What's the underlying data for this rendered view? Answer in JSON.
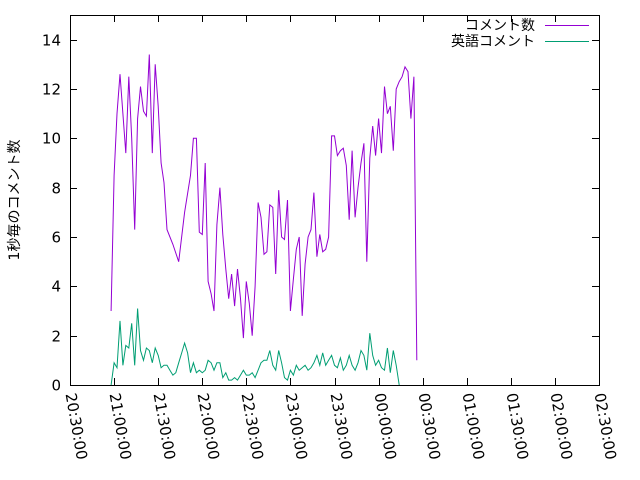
{
  "chart_data": {
    "type": "line",
    "title": "",
    "xlabel": "",
    "ylabel": "1秒毎のコメント数",
    "ylim": [
      0,
      15
    ],
    "yticks": [
      0,
      2,
      4,
      6,
      8,
      10,
      12,
      14
    ],
    "xlim": [
      "20:30:00",
      "02:30:00"
    ],
    "xticks": [
      "20:30:00",
      "21:00:00",
      "21:30:00",
      "22:00:00",
      "22:30:00",
      "23:00:00",
      "23:30:00",
      "00:00:00",
      "00:30:00",
      "01:00:00",
      "01:30:00",
      "02:00:00",
      "02:30:00"
    ],
    "grid": false,
    "legend_position": "top-right",
    "series": [
      {
        "name": "コメント数",
        "color": "#9400d3",
        "points": [
          [
            "20:58:00",
            3.0
          ],
          [
            "21:00:00",
            8.5
          ],
          [
            "21:02:00",
            11.0
          ],
          [
            "21:04:00",
            12.6
          ],
          [
            "21:06:00",
            11.0
          ],
          [
            "21:08:00",
            9.4
          ],
          [
            "21:10:00",
            12.5
          ],
          [
            "21:12:00",
            10.0
          ],
          [
            "21:14:00",
            6.3
          ],
          [
            "21:16:00",
            10.8
          ],
          [
            "21:18:00",
            12.1
          ],
          [
            "21:20:00",
            11.1
          ],
          [
            "21:22:00",
            10.9
          ],
          [
            "21:24:00",
            13.4
          ],
          [
            "21:26:00",
            9.4
          ],
          [
            "21:28:00",
            13.0
          ],
          [
            "21:30:00",
            11.3
          ],
          [
            "21:32:00",
            9.0
          ],
          [
            "21:34:00",
            8.2
          ],
          [
            "21:36:00",
            6.3
          ],
          [
            "21:40:00",
            5.7
          ],
          [
            "21:44:00",
            5.0
          ],
          [
            "21:48:00",
            7.0
          ],
          [
            "21:52:00",
            8.5
          ],
          [
            "21:54:00",
            10.0
          ],
          [
            "21:56:00",
            10.0
          ],
          [
            "21:58:00",
            6.2
          ],
          [
            "22:00:00",
            6.1
          ],
          [
            "22:02:00",
            9.0
          ],
          [
            "22:04:00",
            4.2
          ],
          [
            "22:06:00",
            3.7
          ],
          [
            "22:08:00",
            3.0
          ],
          [
            "22:10:00",
            6.5
          ],
          [
            "22:12:00",
            8.0
          ],
          [
            "22:14:00",
            6.1
          ],
          [
            "22:16:00",
            4.7
          ],
          [
            "22:18:00",
            3.5
          ],
          [
            "22:20:00",
            4.5
          ],
          [
            "22:22:00",
            3.2
          ],
          [
            "22:24:00",
            4.7
          ],
          [
            "22:26:00",
            3.5
          ],
          [
            "22:28:00",
            1.9
          ],
          [
            "22:30:00",
            4.2
          ],
          [
            "22:32:00",
            3.3
          ],
          [
            "22:34:00",
            2.0
          ],
          [
            "22:36:00",
            4.0
          ],
          [
            "22:38:00",
            7.4
          ],
          [
            "22:40:00",
            6.8
          ],
          [
            "22:42:00",
            5.3
          ],
          [
            "22:44:00",
            5.4
          ],
          [
            "22:46:00",
            7.3
          ],
          [
            "22:48:00",
            7.2
          ],
          [
            "22:50:00",
            4.5
          ],
          [
            "22:52:00",
            7.9
          ],
          [
            "22:54:00",
            6.0
          ],
          [
            "22:56:00",
            5.9
          ],
          [
            "22:58:00",
            7.5
          ],
          [
            "23:00:00",
            3.0
          ],
          [
            "23:02:00",
            4.3
          ],
          [
            "23:04:00",
            5.5
          ],
          [
            "23:06:00",
            6.0
          ],
          [
            "23:08:00",
            2.8
          ],
          [
            "23:10:00",
            4.9
          ],
          [
            "23:12:00",
            6.0
          ],
          [
            "23:14:00",
            6.3
          ],
          [
            "23:16:00",
            7.8
          ],
          [
            "23:18:00",
            5.2
          ],
          [
            "23:20:00",
            6.1
          ],
          [
            "23:22:00",
            5.4
          ],
          [
            "23:24:00",
            5.5
          ],
          [
            "23:26:00",
            6.0
          ],
          [
            "23:28:00",
            10.1
          ],
          [
            "23:30:00",
            10.1
          ],
          [
            "23:32:00",
            9.3
          ],
          [
            "23:34:00",
            9.5
          ],
          [
            "23:36:00",
            9.6
          ],
          [
            "23:38:00",
            8.9
          ],
          [
            "23:40:00",
            6.7
          ],
          [
            "23:42:00",
            9.5
          ],
          [
            "23:44:00",
            6.8
          ],
          [
            "23:46:00",
            8.0
          ],
          [
            "23:48:00",
            9.0
          ],
          [
            "23:50:00",
            9.8
          ],
          [
            "23:52:00",
            5.0
          ],
          [
            "23:54:00",
            9.2
          ],
          [
            "23:56:00",
            10.5
          ],
          [
            "23:58:00",
            9.3
          ],
          [
            "00:00:00",
            10.8
          ],
          [
            "00:02:00",
            9.4
          ],
          [
            "00:04:00",
            12.1
          ],
          [
            "00:06:00",
            11.0
          ],
          [
            "00:08:00",
            11.3
          ],
          [
            "00:10:00",
            9.5
          ],
          [
            "00:12:00",
            12.0
          ],
          [
            "00:14:00",
            12.3
          ],
          [
            "00:16:00",
            12.5
          ],
          [
            "00:18:00",
            12.9
          ],
          [
            "00:20:00",
            12.7
          ],
          [
            "00:22:00",
            10.8
          ],
          [
            "00:24:00",
            12.5
          ],
          [
            "00:26:00",
            1.0
          ]
        ]
      },
      {
        "name": "英語コメント",
        "color": "#009e73",
        "points": [
          [
            "20:58:00",
            0.0
          ],
          [
            "21:00:00",
            0.9
          ],
          [
            "21:02:00",
            0.7
          ],
          [
            "21:04:00",
            2.6
          ],
          [
            "21:06:00",
            0.8
          ],
          [
            "21:08:00",
            1.6
          ],
          [
            "21:10:00",
            1.5
          ],
          [
            "21:12:00",
            2.5
          ],
          [
            "21:14:00",
            0.8
          ],
          [
            "21:16:00",
            3.1
          ],
          [
            "21:18:00",
            1.4
          ],
          [
            "21:20:00",
            1.0
          ],
          [
            "21:22:00",
            1.5
          ],
          [
            "21:24:00",
            1.4
          ],
          [
            "21:26:00",
            0.9
          ],
          [
            "21:28:00",
            1.5
          ],
          [
            "21:30:00",
            1.2
          ],
          [
            "21:32:00",
            0.7
          ],
          [
            "21:34:00",
            0.8
          ],
          [
            "21:36:00",
            0.8
          ],
          [
            "21:38:00",
            0.6
          ],
          [
            "21:40:00",
            0.4
          ],
          [
            "21:42:00",
            0.5
          ],
          [
            "21:44:00",
            0.9
          ],
          [
            "21:46:00",
            1.3
          ],
          [
            "21:48:00",
            1.7
          ],
          [
            "21:50:00",
            1.3
          ],
          [
            "21:52:00",
            0.5
          ],
          [
            "21:54:00",
            0.9
          ],
          [
            "21:56:00",
            0.5
          ],
          [
            "21:58:00",
            0.6
          ],
          [
            "22:00:00",
            0.5
          ],
          [
            "22:02:00",
            0.6
          ],
          [
            "22:04:00",
            1.0
          ],
          [
            "22:06:00",
            0.9
          ],
          [
            "22:08:00",
            0.6
          ],
          [
            "22:10:00",
            0.9
          ],
          [
            "22:12:00",
            0.9
          ],
          [
            "22:14:00",
            0.3
          ],
          [
            "22:16:00",
            0.5
          ],
          [
            "22:18:00",
            0.2
          ],
          [
            "22:20:00",
            0.2
          ],
          [
            "22:22:00",
            0.3
          ],
          [
            "22:24:00",
            0.2
          ],
          [
            "22:26:00",
            0.4
          ],
          [
            "22:28:00",
            0.6
          ],
          [
            "22:30:00",
            0.4
          ],
          [
            "22:32:00",
            0.4
          ],
          [
            "22:34:00",
            0.5
          ],
          [
            "22:36:00",
            0.3
          ],
          [
            "22:38:00",
            0.6
          ],
          [
            "22:40:00",
            0.9
          ],
          [
            "22:42:00",
            1.0
          ],
          [
            "22:44:00",
            1.0
          ],
          [
            "22:46:00",
            1.4
          ],
          [
            "22:48:00",
            0.8
          ],
          [
            "22:50:00",
            0.6
          ],
          [
            "22:52:00",
            1.4
          ],
          [
            "22:54:00",
            0.9
          ],
          [
            "22:56:00",
            0.3
          ],
          [
            "22:58:00",
            0.2
          ],
          [
            "23:00:00",
            0.6
          ],
          [
            "23:02:00",
            0.4
          ],
          [
            "23:04:00",
            0.8
          ],
          [
            "23:06:00",
            0.6
          ],
          [
            "23:08:00",
            0.7
          ],
          [
            "23:10:00",
            0.8
          ],
          [
            "23:12:00",
            0.6
          ],
          [
            "23:14:00",
            0.7
          ],
          [
            "23:16:00",
            0.9
          ],
          [
            "23:18:00",
            1.2
          ],
          [
            "23:20:00",
            0.8
          ],
          [
            "23:22:00",
            1.3
          ],
          [
            "23:24:00",
            0.8
          ],
          [
            "23:26:00",
            1.0
          ],
          [
            "23:28:00",
            1.2
          ],
          [
            "23:30:00",
            0.8
          ],
          [
            "23:32:00",
            0.7
          ],
          [
            "23:34:00",
            1.1
          ],
          [
            "23:36:00",
            0.6
          ],
          [
            "23:38:00",
            0.8
          ],
          [
            "23:40:00",
            1.2
          ],
          [
            "23:42:00",
            0.8
          ],
          [
            "23:44:00",
            0.6
          ],
          [
            "23:46:00",
            0.9
          ],
          [
            "23:48:00",
            1.4
          ],
          [
            "23:50:00",
            1.2
          ],
          [
            "23:52:00",
            0.6
          ],
          [
            "23:54:00",
            2.1
          ],
          [
            "23:56:00",
            1.2
          ],
          [
            "23:58:00",
            0.8
          ],
          [
            "00:00:00",
            1.0
          ],
          [
            "00:02:00",
            0.7
          ],
          [
            "00:04:00",
            0.6
          ],
          [
            "00:06:00",
            1.5
          ],
          [
            "00:08:00",
            0.5
          ],
          [
            "00:10:00",
            1.4
          ],
          [
            "00:12:00",
            0.8
          ],
          [
            "00:14:00",
            0.0
          ]
        ]
      }
    ]
  }
}
